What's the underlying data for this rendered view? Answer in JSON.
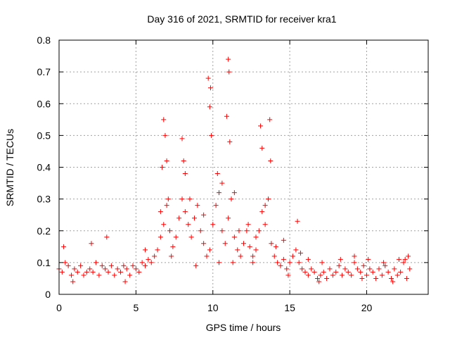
{
  "chart_data": {
    "type": "scatter",
    "title": "Day 316 of 2021, SRMTID for receiver kra1",
    "xlabel": "GPS time / hours",
    "ylabel": "SRMTID / TECUs",
    "xlim": [
      0,
      24
    ],
    "ylim": [
      0,
      0.8
    ],
    "xticks": [
      "0",
      "5",
      "10",
      "15",
      "20"
    ],
    "xtick_values": [
      0,
      5,
      10,
      15,
      20
    ],
    "yticks": [
      "0",
      "0.1",
      "0.2",
      "0.3",
      "0.4",
      "0.5",
      "0.6",
      "0.7",
      "0.8"
    ],
    "ytick_values": [
      0,
      0.1,
      0.2,
      0.3,
      0.4,
      0.5,
      0.6,
      0.7,
      0.8
    ],
    "grid": true,
    "marker": "+",
    "marker_color": "#ff0000",
    "series": [
      {
        "name": "SRMTID",
        "x": [
          0.0,
          0.2,
          0.4,
          0.6,
          0.8,
          1.0,
          1.2,
          1.4,
          1.6,
          1.8,
          2.0,
          2.2,
          2.4,
          2.6,
          2.8,
          3.0,
          3.2,
          3.4,
          3.6,
          3.8,
          4.0,
          4.2,
          4.4,
          4.6,
          4.8,
          5.0,
          5.2,
          5.4,
          5.6,
          5.8,
          6.0,
          6.2,
          6.4,
          6.6,
          6.8,
          7.0,
          7.2,
          7.4,
          7.6,
          7.8,
          8.0,
          8.2,
          8.4,
          8.6,
          8.8,
          9.0,
          9.2,
          9.4,
          9.6,
          9.8,
          10.0,
          10.2,
          10.4,
          10.6,
          10.8,
          11.0,
          11.2,
          11.4,
          11.6,
          11.8,
          12.0,
          12.2,
          12.4,
          12.6,
          12.8,
          13.0,
          13.2,
          13.4,
          13.6,
          13.8,
          14.0,
          14.2,
          14.4,
          14.6,
          14.8,
          15.0,
          15.2,
          15.4,
          15.6,
          15.8,
          16.0,
          16.2,
          16.4,
          16.6,
          16.8,
          17.0,
          17.2,
          17.4,
          17.6,
          17.8,
          18.0,
          18.2,
          18.4,
          18.6,
          18.8,
          19.0,
          19.2,
          19.4,
          19.6,
          19.8,
          20.0,
          20.2,
          20.4,
          20.6,
          20.8,
          21.0,
          21.2,
          21.4,
          21.6,
          21.8,
          22.0,
          22.2,
          22.4,
          22.6,
          22.8,
          6.7,
          6.8,
          6.9,
          7.0,
          7.1,
          8.0,
          8.1,
          8.2,
          9.7,
          9.8,
          9.85,
          9.9,
          10.9,
          11.0,
          11.05,
          11.1,
          13.1,
          13.2,
          13.7,
          13.75,
          15.5,
          0.3,
          2.1,
          3.1,
          5.6,
          6.6,
          7.3,
          8.5,
          9.4,
          10.3,
          10.6,
          11.4,
          11.7,
          12.3,
          12.8,
          13.4,
          14.1,
          14.6,
          15.7,
          16.2,
          17.1,
          18.3,
          19.2,
          20.1,
          21.1,
          22.1,
          22.7,
          22.5,
          0.9,
          4.3,
          8.9,
          10.4,
          11.3,
          12.6,
          14.9,
          16.9,
          19.7,
          21.7
        ],
        "y": [
          0.08,
          0.07,
          0.1,
          0.09,
          0.06,
          0.08,
          0.07,
          0.09,
          0.06,
          0.07,
          0.08,
          0.07,
          0.1,
          0.06,
          0.09,
          0.08,
          0.07,
          0.09,
          0.06,
          0.08,
          0.07,
          0.09,
          0.08,
          0.06,
          0.09,
          0.08,
          0.07,
          0.1,
          0.09,
          0.11,
          0.1,
          0.12,
          0.14,
          0.18,
          0.22,
          0.28,
          0.2,
          0.15,
          0.18,
          0.24,
          0.3,
          0.26,
          0.22,
          0.18,
          0.24,
          0.28,
          0.2,
          0.16,
          0.12,
          0.14,
          0.22,
          0.28,
          0.32,
          0.2,
          0.16,
          0.24,
          0.3,
          0.18,
          0.14,
          0.12,
          0.16,
          0.2,
          0.15,
          0.12,
          0.14,
          0.2,
          0.26,
          0.28,
          0.3,
          0.16,
          0.12,
          0.1,
          0.09,
          0.11,
          0.08,
          0.1,
          0.12,
          0.14,
          0.1,
          0.08,
          0.07,
          0.06,
          0.08,
          0.07,
          0.05,
          0.06,
          0.07,
          0.05,
          0.08,
          0.06,
          0.07,
          0.09,
          0.06,
          0.08,
          0.07,
          0.06,
          0.1,
          0.08,
          0.07,
          0.09,
          0.06,
          0.08,
          0.07,
          0.05,
          0.08,
          0.06,
          0.09,
          0.07,
          0.05,
          0.08,
          0.06,
          0.07,
          0.1,
          0.05,
          0.08,
          0.4,
          0.55,
          0.5,
          0.42,
          0.3,
          0.49,
          0.42,
          0.38,
          0.68,
          0.59,
          0.65,
          0.5,
          0.56,
          0.74,
          0.7,
          0.48,
          0.53,
          0.46,
          0.55,
          0.42,
          0.23,
          0.15,
          0.16,
          0.18,
          0.14,
          0.26,
          0.12,
          0.3,
          0.25,
          0.38,
          0.35,
          0.32,
          0.2,
          0.22,
          0.18,
          0.22,
          0.15,
          0.17,
          0.13,
          0.11,
          0.1,
          0.11,
          0.12,
          0.11,
          0.1,
          0.11,
          0.12,
          0.11,
          0.04,
          0.04,
          0.09,
          0.1,
          0.1,
          0.1,
          0.06,
          0.04,
          0.05,
          0.04
        ]
      }
    ]
  }
}
